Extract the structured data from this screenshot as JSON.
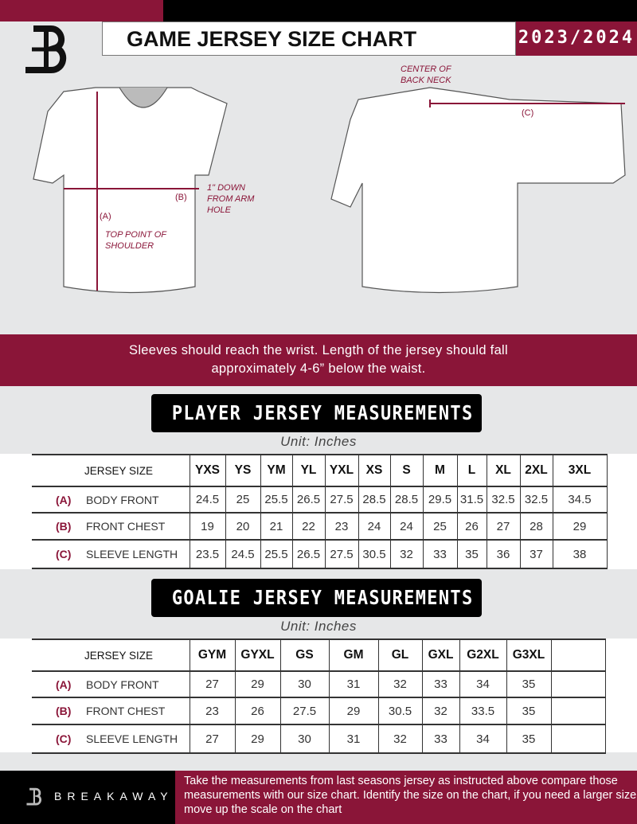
{
  "header": {
    "title": "GAME JERSEY SIZE CHART",
    "season": "2023/2024"
  },
  "diagram": {
    "center_back_neck": "CENTER OF BACK NECK",
    "label_a": "(A)",
    "label_b": "(B)",
    "label_c": "(C)",
    "arm_hole_note": "1\" DOWN FROM ARM HOLE",
    "shoulder_note": "TOP POINT OF SHOULDER"
  },
  "band_text": "Sleeves should reach the wrist. Length of the jersey should fall approximately 4-6” below the waist.",
  "player": {
    "title": "PLAYER JERSEY MEASUREMENTS",
    "unit": "Unit: Inches",
    "header": "JERSEY SIZE",
    "sizes": [
      "YXS",
      "YS",
      "YM",
      "YL",
      "YXL",
      "XS",
      "S",
      "M",
      "L",
      "XL",
      "2XL",
      "3XL"
    ],
    "rows": [
      {
        "code": "(A)",
        "label": "BODY FRONT",
        "values": [
          "24.5",
          "25",
          "25.5",
          "26.5",
          "27.5",
          "28.5",
          "28.5",
          "29.5",
          "31.5",
          "32.5",
          "32.5",
          "34.5"
        ]
      },
      {
        "code": "(B)",
        "label": "FRONT CHEST",
        "values": [
          "19",
          "20",
          "21",
          "22",
          "23",
          "24",
          "24",
          "25",
          "26",
          "27",
          "28",
          "29"
        ]
      },
      {
        "code": "(C)",
        "label": "SLEEVE LENGTH",
        "values": [
          "23.5",
          "24.5",
          "25.5",
          "26.5",
          "27.5",
          "30.5",
          "32",
          "33",
          "35",
          "36",
          "37",
          "38"
        ]
      }
    ]
  },
  "goalie": {
    "title": "GOALIE JERSEY MEASUREMENTS",
    "unit": "Unit: Inches",
    "header": "JERSEY SIZE",
    "sizes": [
      "GYM",
      "GYXL",
      "GS",
      "GM",
      "GL",
      "GXL",
      "G2XL",
      "G3XL",
      ""
    ],
    "rows": [
      {
        "code": "(A)",
        "label": "BODY FRONT",
        "values": [
          "27",
          "29",
          "30",
          "31",
          "32",
          "33",
          "34",
          "35",
          ""
        ]
      },
      {
        "code": "(B)",
        "label": "FRONT CHEST",
        "values": [
          "23",
          "26",
          "27.5",
          "29",
          "30.5",
          "32",
          "33.5",
          "35",
          ""
        ]
      },
      {
        "code": "(C)",
        "label": "SLEEVE LENGTH",
        "values": [
          "27",
          "29",
          "30",
          "31",
          "32",
          "33",
          "34",
          "35",
          ""
        ]
      }
    ]
  },
  "footer": {
    "brand": "BREAKAWAY",
    "text": "Take the measurements from last seasons jersey as instructed above compare those measurements  with our size chart. Identify the size on the chart, if you need a larger size move up the scale on the chart"
  },
  "colors": {
    "accent": "#8a1538",
    "background": "#e6e7e8"
  }
}
